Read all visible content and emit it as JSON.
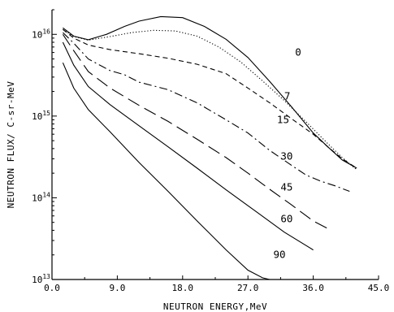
{
  "chart_data": {
    "type": "line",
    "title": "",
    "xlabel": "NEUTRON ENERGY,MeV",
    "ylabel": "NEUTRON FLUX/ C-sr-MeV",
    "x_scale": "linear",
    "y_scale": "log",
    "xlim": [
      0,
      45
    ],
    "ylim": [
      10000000000000.0,
      2e+16
    ],
    "x_tick_labels": [
      "0.0",
      "9.0",
      "18.0",
      "27.0",
      "36.0",
      "45.0"
    ],
    "y_tick_labels": [
      {
        "value": 10000000000000.0,
        "base": "10",
        "exp": "13"
      },
      {
        "value": 100000000000000.0,
        "base": "10",
        "exp": "14"
      },
      {
        "value": 1000000000000000.0,
        "base": "10",
        "exp": "15"
      },
      {
        "value": 1e+16,
        "base": "10",
        "exp": "16"
      }
    ],
    "grid": false,
    "legend": "none",
    "series": [
      {
        "name": "0",
        "style": "solid",
        "x": [
          1.5,
          3,
          5,
          7.5,
          10,
          12,
          15,
          18,
          21,
          24,
          27,
          30,
          33,
          36,
          38,
          40,
          42
        ],
        "y": [
          1.2e+16,
          9500000000000000.0,
          8600000000000000.0,
          1e+16,
          1.25e+16,
          1.45e+16,
          1.65e+16,
          1.6e+16,
          1.25e+16,
          8700000000000000.0,
          5200000000000000.0,
          2650000000000000.0,
          1300000000000000.0,
          620000000000000.0,
          420000000000000.0,
          290000000000000.0,
          230000000000000.0
        ]
      },
      {
        "name": "7",
        "style": "dotted",
        "x": [
          1.5,
          3,
          5,
          8,
          11,
          14,
          17,
          20,
          23,
          26,
          29,
          32,
          35,
          38,
          40,
          42
        ],
        "y": [
          1.15e+16,
          9400000000000000.0,
          8500000000000000.0,
          9400000000000000.0,
          1.05e+16,
          1.12e+16,
          1.1e+16,
          9500000000000000.0,
          7000000000000000.0,
          4600000000000000.0,
          2700000000000000.0,
          1550000000000000.0,
          850000000000000.0,
          460000000000000.0,
          310000000000000.0,
          220000000000000.0
        ]
      },
      {
        "name": "15",
        "style": "dashed",
        "x": [
          1.5,
          3,
          5,
          8,
          12,
          16,
          20,
          24,
          27,
          30,
          33,
          36,
          38,
          40,
          42
        ],
        "y": [
          1.15e+16,
          9000000000000000.0,
          7400000000000000.0,
          6500000000000000.0,
          5800000000000000.0,
          5100000000000000.0,
          4300000000000000.0,
          3300000000000000.0,
          2200000000000000.0,
          1450000000000000.0,
          930000000000000.0,
          600000000000000.0,
          420000000000000.0,
          300000000000000.0,
          230000000000000.0
        ]
      },
      {
        "name": "30",
        "style": "dashdot",
        "x": [
          1.5,
          3,
          5,
          8,
          10,
          12,
          16,
          20,
          24,
          27,
          30,
          33,
          35,
          37,
          39,
          41
        ],
        "y": [
          1.05e+16,
          7800000000000000.0,
          5000000000000000.0,
          3600000000000000.0,
          3200000000000000.0,
          2600000000000000.0,
          2100000000000000.0,
          1450000000000000.0,
          900000000000000.0,
          620000000000000.0,
          380000000000000.0,
          250000000000000.0,
          190000000000000.0,
          160000000000000.0,
          140000000000000.0,
          120000000000000.0
        ]
      },
      {
        "name": "45",
        "style": "longdash",
        "x": [
          1.5,
          3,
          5,
          8,
          12,
          16,
          20,
          24,
          27,
          30,
          33,
          36,
          38
        ],
        "y": [
          1e+16,
          6300000000000000.0,
          3500000000000000.0,
          2200000000000000.0,
          1350000000000000.0,
          860000000000000.0,
          520000000000000.0,
          310000000000000.0,
          200000000000000.0,
          127000000000000.0,
          82000000000000.0,
          52000000000000.0,
          42000000000000.0
        ]
      },
      {
        "name": "60",
        "style": "solid",
        "x": [
          1.5,
          3,
          5,
          8,
          12,
          16,
          20,
          24,
          28,
          32,
          36
        ],
        "y": [
          8000000000000000.0,
          4200000000000000.0,
          2300000000000000.0,
          1380000000000000.0,
          760000000000000.0,
          420000000000000.0,
          230000000000000.0,
          125000000000000.0,
          69000000000000.0,
          38000000000000.0,
          23000000000000.0
        ]
      },
      {
        "name": "90",
        "style": "solid",
        "x": [
          1.5,
          3,
          5,
          8,
          12,
          16,
          20,
          24,
          27,
          29,
          30
        ],
        "y": [
          4500000000000000.0,
          2200000000000000.0,
          1200000000000000.0,
          640000000000000.0,
          270000000000000.0,
          120000000000000.0,
          52000000000000.0,
          23000000000000.0,
          13000000000000.0,
          10500000000000.0,
          10000000000000.0
        ]
      }
    ],
    "series_labels": [
      {
        "name": "0",
        "text": "0",
        "x": 33.5,
        "y": 6000000000000000.0
      },
      {
        "name": "7",
        "text": "7",
        "x": 32.0,
        "y": 1750000000000000.0
      },
      {
        "name": "15",
        "text": "15",
        "x": 31.0,
        "y": 900000000000000.0
      },
      {
        "name": "30",
        "text": "30",
        "x": 31.5,
        "y": 320000000000000.0
      },
      {
        "name": "45",
        "text": "45",
        "x": 31.5,
        "y": 135000000000000.0
      },
      {
        "name": "60",
        "text": "60",
        "x": 31.5,
        "y": 55000000000000.0
      },
      {
        "name": "90",
        "text": "90",
        "x": 30.5,
        "y": 20000000000000.0
      }
    ]
  }
}
